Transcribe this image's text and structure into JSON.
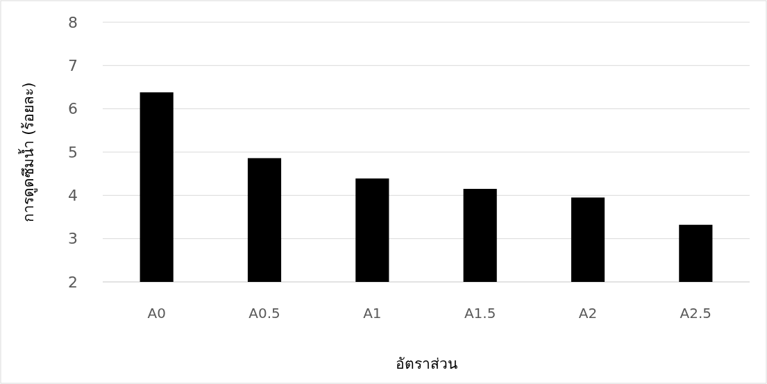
{
  "chart_data": {
    "type": "bar",
    "xlabel": "อัตราส่วน",
    "ylabel": "การดูดซึมน้ำ (ร้อยละ)",
    "categories": [
      "A0",
      "A0.5",
      "A1",
      "A1.5",
      "A2",
      "A2.5"
    ],
    "values": [
      6.38,
      4.86,
      4.39,
      4.15,
      3.95,
      3.32
    ],
    "color": "#000000",
    "ylim": [
      2,
      8
    ],
    "yticks": [
      2,
      3,
      4,
      5,
      6,
      7,
      8
    ],
    "grid": "y"
  }
}
